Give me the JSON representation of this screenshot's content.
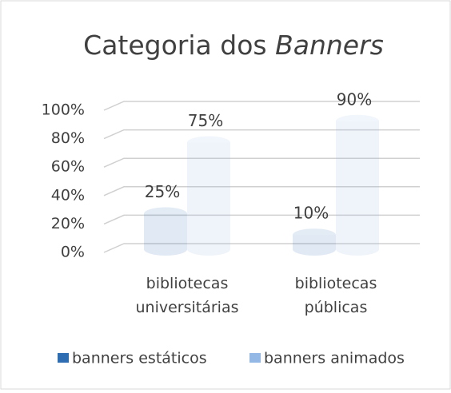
{
  "chart_data": {
    "type": "bar3d",
    "title": "Categoria dos Banners",
    "categories": [
      "bibliotecas universitárias",
      "bibliotecas públicas"
    ],
    "series": [
      {
        "name": "banners estáticos",
        "color": "#2f6db3",
        "values": [
          25,
          10
        ],
        "value_labels": [
          "25%",
          "10%"
        ]
      },
      {
        "name": "banners animados",
        "color": "#94b8e6",
        "values": [
          75,
          90
        ],
        "value_labels": [
          "75%",
          "90%"
        ]
      }
    ],
    "ylim": [
      0,
      100
    ],
    "yticks": [
      {
        "value": 0,
        "label": "0%"
      },
      {
        "value": 20,
        "label": "20%"
      },
      {
        "value": 40,
        "label": "40%"
      },
      {
        "value": 60,
        "label": "60%"
      },
      {
        "value": 80,
        "label": "80%"
      },
      {
        "value": 100,
        "label": "100%"
      }
    ],
    "grid": true,
    "legend": "bottom"
  }
}
